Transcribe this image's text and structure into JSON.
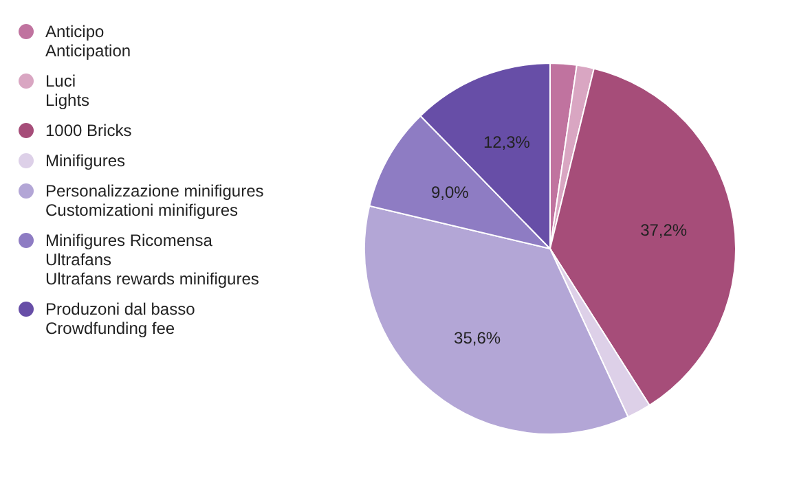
{
  "chart_data": {
    "type": "pie",
    "categories": [
      "Anticipo\nAnticipation",
      "Luci\nLights",
      "1000 Bricks",
      "Minifigures",
      "Personalizzazione minifigures\nCustomizationi minifigures",
      "Minifigures Ricomensa\nUltrafans\nUltrafans rewards minifigures",
      "Produzoni dal basso\nCrowdfunding fee"
    ],
    "values": [
      2.3,
      1.5,
      37.2,
      2.1,
      35.6,
      9.0,
      12.3
    ],
    "colors": [
      "#c0739f",
      "#d9a6c2",
      "#a64d79",
      "#ddd0e8",
      "#b3a6d6",
      "#8e7cc3",
      "#674ea7"
    ],
    "value_labels": [
      null,
      null,
      "37,2%",
      null,
      "35,6%",
      "9,0%",
      "12,3%"
    ],
    "legend": "left"
  }
}
